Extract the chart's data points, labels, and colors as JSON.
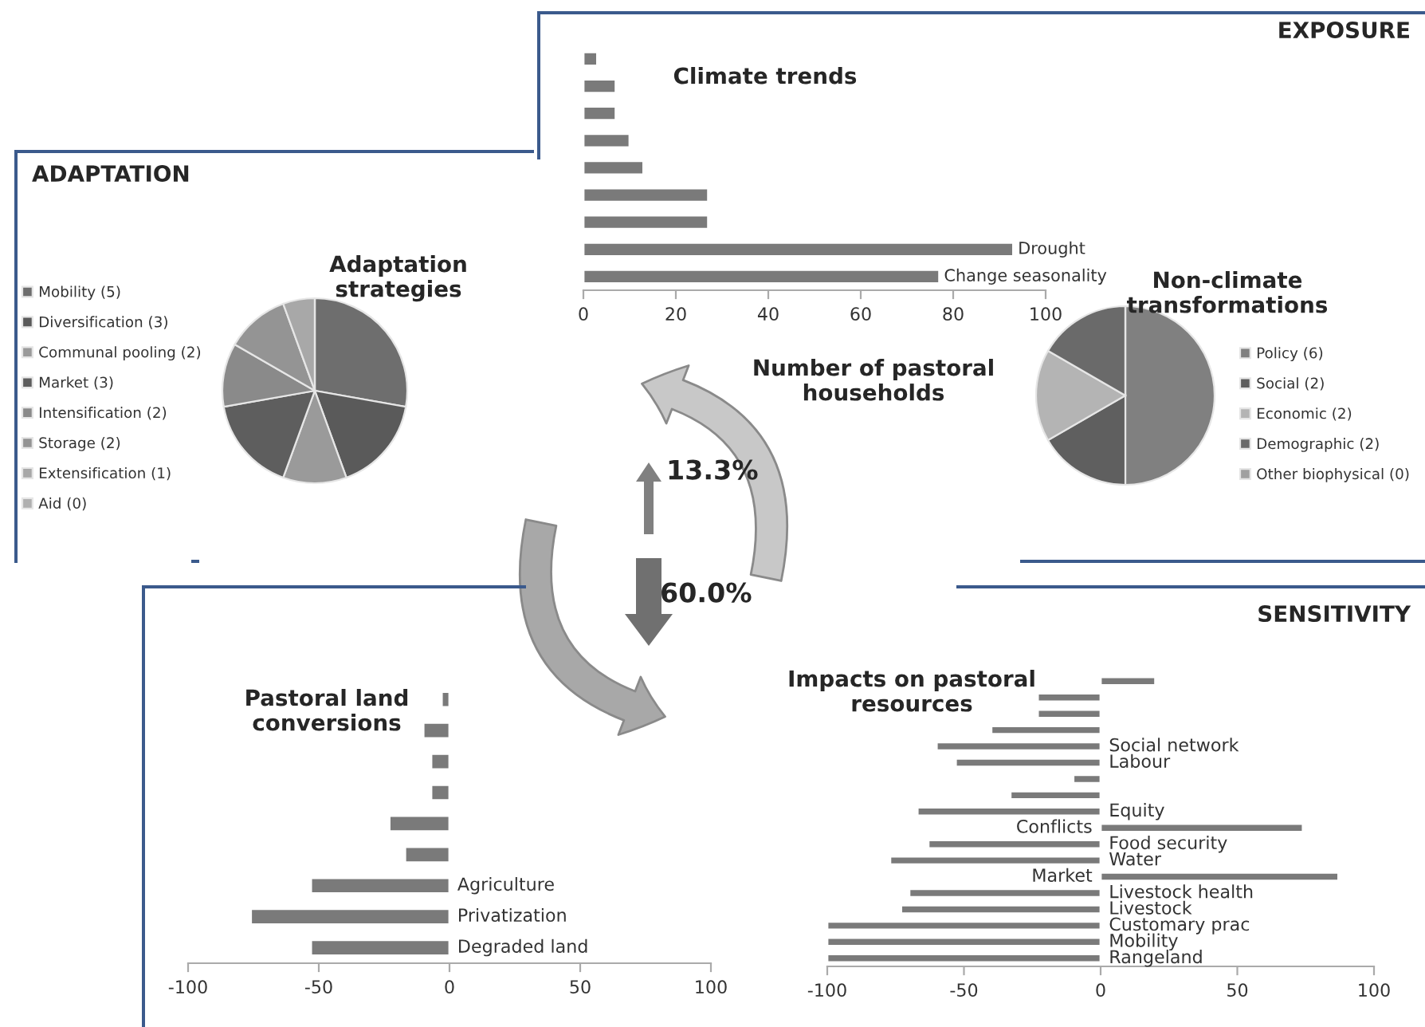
{
  "chart_data": [
    {
      "type": "bar",
      "orientation": "horizontal",
      "title": "Climate trends",
      "annotations": [
        "EXPOSURE"
      ],
      "categories": [
        null,
        null,
        null,
        null,
        null,
        null,
        null,
        "Drought",
        "Change seasonality"
      ],
      "values": [
        3,
        7,
        7,
        10,
        13,
        27,
        27,
        93,
        77
      ],
      "color": "#7a7a7a",
      "xlim": [
        0,
        100
      ],
      "xticks": [
        0,
        20,
        40,
        60,
        80,
        100
      ],
      "tick_labels": "x"
    },
    {
      "type": "pie",
      "title": "Adaptation strategies",
      "annotations": [
        "ADAPTATION"
      ],
      "categories": [
        "Mobility (5)",
        "Diversification (3)",
        "Communal pooling (2)",
        "Market (3)",
        "Intensification (2)",
        "Storage (2)",
        "Extensification (1)",
        "Aid (0)"
      ],
      "values": [
        5,
        3,
        2,
        3,
        2,
        2,
        1,
        0
      ],
      "colors": [
        "#6e6e6e",
        "#5a5a5a",
        "#9a9a9a",
        "#5e5e5e",
        "#8a8a8a",
        "#949494",
        "#a8a8a8",
        "#b0b0b0"
      ],
      "legend": "left"
    },
    {
      "type": "other",
      "title": "Number of pastoral households",
      "annotations": [
        "13.3%",
        "60.0%"
      ]
    },
    {
      "type": "pie",
      "title": "Non-climate transformations",
      "categories": [
        "Policy (6)",
        "Social (2)",
        "Economic (2)",
        "Demographic (2)",
        "Other biophysical (0)"
      ],
      "values": [
        6,
        2,
        2,
        2,
        0
      ],
      "colors": [
        "#808080",
        "#5f5f5f",
        "#b4b4b4",
        "#6a6a6a",
        "#a0a0a0"
      ],
      "legend": "right"
    },
    {
      "type": "bar",
      "orientation": "horizontal",
      "title": "Pastoral land conversions",
      "categories": [
        null,
        null,
        null,
        null,
        null,
        null,
        "Agriculture",
        "Privatization",
        "Degraded land"
      ],
      "values": [
        -3,
        -10,
        -7,
        -7,
        -23,
        -17,
        -53,
        -76,
        -53
      ],
      "color": "#7a7a7a",
      "xlim": [
        -100,
        100
      ],
      "xticks": [
        -100,
        -50,
        0,
        50,
        100
      ],
      "tick_labels": "x"
    },
    {
      "type": "bar",
      "orientation": "horizontal",
      "title": "Impacts on pastoral resources",
      "annotations": [
        "SENSITIVITY"
      ],
      "categories": [
        null,
        null,
        null,
        null,
        "Social network",
        "Labour",
        null,
        null,
        "Equity",
        "Conflicts",
        "Food security",
        "Water",
        "Market",
        "Livestock health",
        "Livestock",
        "Customary prac",
        "Mobility",
        "Rangeland"
      ],
      "values": [
        20,
        -23,
        -23,
        -40,
        -60,
        -53,
        -10,
        -33,
        -67,
        74,
        -63,
        -77,
        87,
        -70,
        -73,
        -100,
        -100,
        -100
      ],
      "color": "#7a7a7a",
      "xlim": [
        -100,
        100
      ],
      "xticks": [
        -100,
        -50,
        0,
        50,
        100
      ],
      "tick_labels": "x"
    }
  ]
}
